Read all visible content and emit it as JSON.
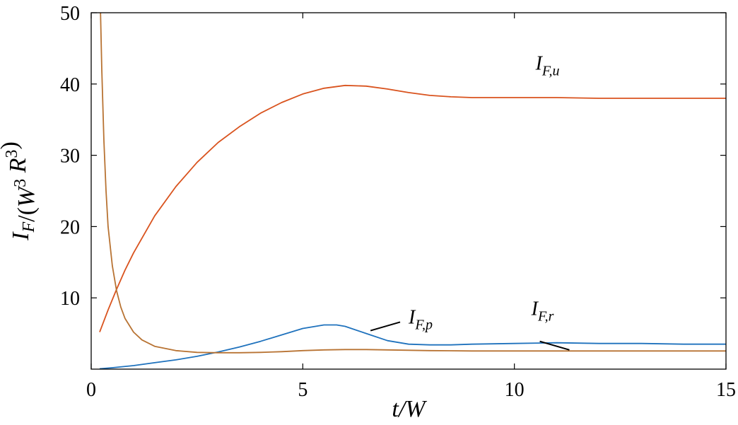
{
  "chart_data": {
    "type": "line",
    "xlabel": "t/W",
    "ylabel": "I_F/(W^3 R^3)",
    "xlim": [
      0,
      15
    ],
    "ylim": [
      0,
      50
    ],
    "xticks": [
      0,
      5,
      10,
      15
    ],
    "yticks": [
      10,
      20,
      30,
      40,
      50
    ],
    "grid": false,
    "series": [
      {
        "name": "I_F,u",
        "color": "#d9531e",
        "x": [
          0.2,
          0.4,
          0.6,
          0.8,
          1.0,
          1.5,
          2.0,
          2.5,
          3.0,
          3.5,
          4.0,
          4.5,
          5.0,
          5.5,
          6.0,
          6.5,
          7.0,
          7.5,
          8.0,
          8.5,
          9.0,
          10.0,
          11.0,
          12.0,
          13.0,
          14.0,
          15.0
        ],
        "y": [
          5.2,
          8.3,
          11.2,
          13.9,
          16.3,
          21.5,
          25.6,
          29.0,
          31.8,
          34.0,
          35.9,
          37.4,
          38.6,
          39.4,
          39.8,
          39.7,
          39.3,
          38.8,
          38.4,
          38.2,
          38.1,
          38.1,
          38.1,
          38.0,
          38.0,
          38.0,
          38.0
        ]
      },
      {
        "name": "I_F,p",
        "color": "#1f72bd",
        "x": [
          0.2,
          0.5,
          1.0,
          1.5,
          2.0,
          2.5,
          3.0,
          3.5,
          4.0,
          4.5,
          5.0,
          5.5,
          5.8,
          6.0,
          6.5,
          7.0,
          7.5,
          8.0,
          8.5,
          9.0,
          10.0,
          11.0,
          12.0,
          13.0,
          14.0,
          15.0
        ],
        "y": [
          0.05,
          0.2,
          0.5,
          0.9,
          1.3,
          1.8,
          2.4,
          3.1,
          3.9,
          4.8,
          5.7,
          6.2,
          6.2,
          6.0,
          5.0,
          4.0,
          3.5,
          3.4,
          3.4,
          3.5,
          3.6,
          3.7,
          3.6,
          3.6,
          3.5,
          3.5
        ]
      },
      {
        "name": "I_F,r",
        "color": "#b87333",
        "x": [
          0.22,
          0.25,
          0.3,
          0.35,
          0.4,
          0.5,
          0.6,
          0.7,
          0.8,
          1.0,
          1.2,
          1.5,
          2.0,
          2.5,
          3.0,
          3.5,
          4.0,
          4.5,
          5.0,
          5.5,
          6.0,
          6.5,
          7.0,
          8.0,
          9.0,
          10.0,
          11.0,
          12.0,
          13.0,
          14.0,
          15.0
        ],
        "y": [
          50,
          42,
          32,
          25,
          20,
          14.5,
          11.0,
          8.7,
          7.1,
          5.2,
          4.1,
          3.2,
          2.6,
          2.35,
          2.3,
          2.3,
          2.35,
          2.45,
          2.6,
          2.7,
          2.75,
          2.75,
          2.7,
          2.6,
          2.55,
          2.55,
          2.55,
          2.55,
          2.55,
          2.55,
          2.55
        ]
      }
    ],
    "annotations": [
      {
        "base": "I",
        "sub": "F,u",
        "x": 10.5,
        "y": 42.0,
        "series": "I_F,u",
        "leader": false
      },
      {
        "base": "I",
        "sub": "F,p",
        "x": 7.5,
        "y": 6.4,
        "series": "I_F,p",
        "leader": true,
        "line_from": [
          6.6,
          5.4
        ],
        "line_to": [
          7.3,
          6.6
        ]
      },
      {
        "base": "I",
        "sub": "F,r",
        "x": 10.4,
        "y": 7.6,
        "series": "I_F,r",
        "leader": true,
        "line_from": [
          11.3,
          2.7
        ],
        "line_to": [
          10.6,
          3.9
        ]
      }
    ]
  }
}
